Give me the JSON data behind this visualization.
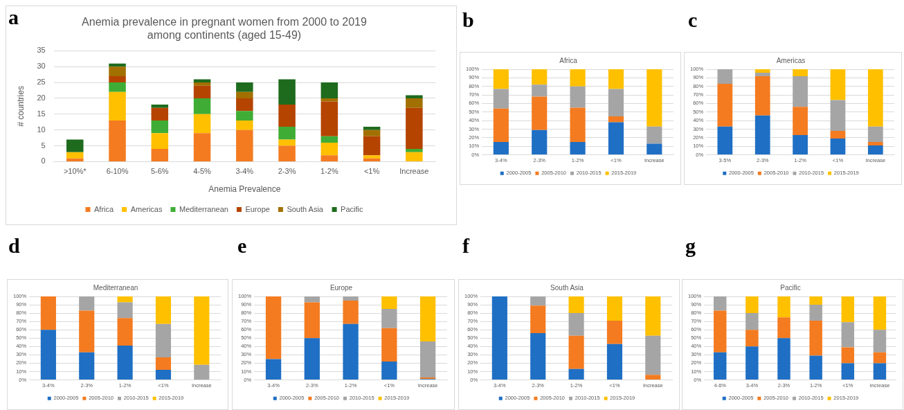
{
  "chart_data": [
    {
      "type": "bar",
      "stacked": true,
      "title": "Anemia prevalence in pregnant women from 2000 to 2019 among continents (aged 15-49)",
      "xlabel": "Anemia Prevalence",
      "ylabel": "# countries",
      "annotations": [
        "a"
      ],
      "categories": [
        ">10%*",
        "6-10%",
        "5-6%",
        "4-5%",
        "3-4%",
        "2-3%",
        "1-2%",
        "<1%",
        "Increase"
      ],
      "series": [
        {
          "name": "Africa",
          "color": "#f47b20",
          "values": [
            1,
            13,
            4,
            9,
            10,
            5,
            2,
            1,
            0
          ]
        },
        {
          "name": "Americas",
          "color": "#ffc000",
          "values": [
            2,
            9,
            5,
            6,
            3,
            2,
            4,
            1,
            3
          ]
        },
        {
          "name": "Mediterranean",
          "color": "#3fad35",
          "values": [
            0,
            3,
            4,
            5,
            3,
            4,
            2,
            0,
            1
          ]
        },
        {
          "name": "Europe",
          "color": "#b54400",
          "values": [
            0,
            2,
            4,
            4,
            4,
            7,
            11,
            6,
            13
          ]
        },
        {
          "name": "South Asia",
          "color": "#a27000",
          "values": [
            0,
            3,
            0,
            1,
            2,
            0,
            1,
            2,
            3
          ]
        },
        {
          "name": "Pacific",
          "color": "#1e6b1e",
          "values": [
            4,
            1,
            1,
            1,
            3,
            8,
            5,
            1,
            1
          ]
        }
      ],
      "ylim": [
        0,
        35
      ],
      "yticks": [
        0,
        5,
        10,
        15,
        20,
        25,
        30,
        35
      ],
      "grid": "y",
      "legend": "bottom"
    },
    {
      "type": "bar",
      "stacked": true,
      "title": "Africa",
      "annotations": [
        "b"
      ],
      "categories": [
        "3-4%",
        "2-3%",
        "1-2%",
        "<1%",
        "Increase"
      ],
      "series": [
        {
          "name": "2000-2005",
          "color": "#1f6fc4",
          "values": [
            15,
            29,
            15,
            38,
            13
          ]
        },
        {
          "name": "2005-2010",
          "color": "#f47b20",
          "values": [
            39,
            39,
            40,
            7,
            0
          ]
        },
        {
          "name": "2010-2015",
          "color": "#a5a5a5",
          "values": [
            23,
            14,
            25,
            32,
            20
          ]
        },
        {
          "name": "2015-2019",
          "color": "#ffc000",
          "values": [
            23,
            18,
            20,
            23,
            67
          ]
        }
      ],
      "ylim": [
        0,
        100
      ],
      "yticks": [
        {
          "value": 0,
          "label": "0%"
        },
        {
          "value": 10,
          "label": "10%"
        },
        {
          "value": 20,
          "label": "20%"
        },
        {
          "value": 30,
          "label": "30%"
        },
        {
          "value": 40,
          "label": "40%"
        },
        {
          "value": 50,
          "label": "50%"
        },
        {
          "value": 60,
          "label": "60%"
        },
        {
          "value": 70,
          "label": "70%"
        },
        {
          "value": 80,
          "label": "80%"
        },
        {
          "value": 90,
          "label": "90%"
        },
        {
          "value": 100,
          "label": "100%"
        }
      ],
      "grid": "y",
      "legend": "bottom"
    },
    {
      "type": "bar",
      "stacked": true,
      "title": "Americas",
      "annotations": [
        "c"
      ],
      "categories": [
        "3-5%",
        "2-3%",
        "1-2%",
        "<1%",
        "Increase"
      ],
      "series": [
        {
          "name": "2000-2005",
          "color": "#1f6fc4",
          "values": [
            33,
            46,
            23,
            19,
            11
          ]
        },
        {
          "name": "2005-2010",
          "color": "#f47b20",
          "values": [
            50,
            46,
            33,
            9,
            4
          ]
        },
        {
          "name": "2010-2015",
          "color": "#a5a5a5",
          "values": [
            17,
            4,
            36,
            36,
            18
          ]
        },
        {
          "name": "2015-2019",
          "color": "#ffc000",
          "values": [
            0,
            4,
            8,
            36,
            67
          ]
        }
      ],
      "ylim": [
        0,
        100
      ],
      "yticks": [
        {
          "value": 0,
          "label": "0%"
        },
        {
          "value": 10,
          "label": "10%"
        },
        {
          "value": 20,
          "label": "20%"
        },
        {
          "value": 30,
          "label": "30%"
        },
        {
          "value": 40,
          "label": "40%"
        },
        {
          "value": 50,
          "label": "50%"
        },
        {
          "value": 60,
          "label": "60%"
        },
        {
          "value": 70,
          "label": "70%"
        },
        {
          "value": 80,
          "label": "80%"
        },
        {
          "value": 90,
          "label": "90%"
        },
        {
          "value": 100,
          "label": "100%"
        }
      ],
      "grid": "y",
      "legend": "bottom"
    },
    {
      "type": "bar",
      "stacked": true,
      "title": "Mediterranean",
      "annotations": [
        "d"
      ],
      "categories": [
        "3-4%",
        "2-3%",
        "1-2%",
        "<1%",
        "Increase"
      ],
      "series": [
        {
          "name": "2000-2005",
          "color": "#1f6fc4",
          "values": [
            60,
            33,
            41,
            12,
            0
          ]
        },
        {
          "name": "2005-2010",
          "color": "#f47b20",
          "values": [
            40,
            50,
            33,
            15,
            0
          ]
        },
        {
          "name": "2010-2015",
          "color": "#a5a5a5",
          "values": [
            0,
            17,
            19,
            40,
            18
          ]
        },
        {
          "name": "2015-2019",
          "color": "#ffc000",
          "values": [
            0,
            0,
            7,
            33,
            82
          ]
        }
      ],
      "ylim": [
        0,
        100
      ],
      "yticks": [
        {
          "value": 0,
          "label": "0%"
        },
        {
          "value": 10,
          "label": "10%"
        },
        {
          "value": 20,
          "label": "20%"
        },
        {
          "value": 30,
          "label": "30%"
        },
        {
          "value": 40,
          "label": "40%"
        },
        {
          "value": 50,
          "label": "50%"
        },
        {
          "value": 60,
          "label": "60%"
        },
        {
          "value": 70,
          "label": "70%"
        },
        {
          "value": 80,
          "label": "80%"
        },
        {
          "value": 90,
          "label": "90%"
        },
        {
          "value": 100,
          "label": "100%"
        }
      ],
      "grid": "y",
      "legend": "bottom"
    },
    {
      "type": "bar",
      "stacked": true,
      "title": "Europe",
      "annotations": [
        "e"
      ],
      "categories": [
        "3-4%",
        "2-3%",
        "1-2%",
        "<1%",
        "Increase"
      ],
      "series": [
        {
          "name": "2000-2005",
          "color": "#1f6fc4",
          "values": [
            25,
            50,
            67,
            22,
            1
          ]
        },
        {
          "name": "2005-2010",
          "color": "#f47b20",
          "values": [
            75,
            43,
            28,
            40,
            2
          ]
        },
        {
          "name": "2010-2015",
          "color": "#a5a5a5",
          "values": [
            0,
            7,
            5,
            23,
            43
          ]
        },
        {
          "name": "2015-2019",
          "color": "#ffc000",
          "values": [
            0,
            0,
            0,
            15,
            54
          ]
        }
      ],
      "ylim": [
        0,
        100
      ],
      "yticks": [
        {
          "value": 0,
          "label": "0%"
        },
        {
          "value": 10,
          "label": "10%"
        },
        {
          "value": 20,
          "label": "20%"
        },
        {
          "value": 30,
          "label": "30%"
        },
        {
          "value": 40,
          "label": "40%"
        },
        {
          "value": 50,
          "label": "50%"
        },
        {
          "value": 60,
          "label": "60%"
        },
        {
          "value": 70,
          "label": "70%"
        },
        {
          "value": 80,
          "label": "80%"
        },
        {
          "value": 90,
          "label": "90%"
        },
        {
          "value": 100,
          "label": "100%"
        }
      ],
      "grid": "y",
      "legend": "bottom"
    },
    {
      "type": "bar",
      "stacked": true,
      "title": "South Asia",
      "annotations": [
        "f"
      ],
      "categories": [
        "3-4%",
        "2-3%",
        "1-2%",
        "<1%",
        "Increase"
      ],
      "series": [
        {
          "name": "2000-2005",
          "color": "#1f6fc4",
          "values": [
            100,
            56,
            13,
            43,
            0
          ]
        },
        {
          "name": "2005-2010",
          "color": "#f47b20",
          "values": [
            0,
            33,
            40,
            28,
            6
          ]
        },
        {
          "name": "2010-2015",
          "color": "#a5a5a5",
          "values": [
            0,
            11,
            27,
            0,
            47
          ]
        },
        {
          "name": "2015-2019",
          "color": "#ffc000",
          "values": [
            0,
            0,
            20,
            29,
            47
          ]
        }
      ],
      "ylim": [
        0,
        100
      ],
      "yticks": [
        {
          "value": 0,
          "label": "0%"
        },
        {
          "value": 10,
          "label": "10%"
        },
        {
          "value": 20,
          "label": "20%"
        },
        {
          "value": 30,
          "label": "30%"
        },
        {
          "value": 40,
          "label": "40%"
        },
        {
          "value": 50,
          "label": "50%"
        },
        {
          "value": 60,
          "label": "60%"
        },
        {
          "value": 70,
          "label": "70%"
        },
        {
          "value": 80,
          "label": "80%"
        },
        {
          "value": 90,
          "label": "90%"
        },
        {
          "value": 100,
          "label": "100%"
        }
      ],
      "grid": "y",
      "legend": "bottom"
    },
    {
      "type": "bar",
      "stacked": true,
      "title": "Pacific",
      "annotations": [
        "g"
      ],
      "categories": [
        "4-6%",
        "3-4%",
        "2-3%",
        "1-2%",
        "<1%",
        "Increase"
      ],
      "series": [
        {
          "name": "2000-2005",
          "color": "#1f6fc4",
          "values": [
            33,
            40,
            50,
            29,
            20,
            20
          ]
        },
        {
          "name": "2005-2010",
          "color": "#f47b20",
          "values": [
            50,
            20,
            25,
            42,
            19,
            13
          ]
        },
        {
          "name": "2010-2015",
          "color": "#a5a5a5",
          "values": [
            17,
            20,
            0,
            19,
            30,
            27
          ]
        },
        {
          "name": "2015-2019",
          "color": "#ffc000",
          "values": [
            0,
            20,
            25,
            10,
            31,
            40
          ]
        }
      ],
      "ylim": [
        0,
        100
      ],
      "yticks": [
        {
          "value": 0,
          "label": "0%"
        },
        {
          "value": 10,
          "label": "10%"
        },
        {
          "value": 20,
          "label": "20%"
        },
        {
          "value": 30,
          "label": "30%"
        },
        {
          "value": 40,
          "label": "40%"
        },
        {
          "value": 50,
          "label": "50%"
        },
        {
          "value": 60,
          "label": "60%"
        },
        {
          "value": 70,
          "label": "70%"
        },
        {
          "value": 80,
          "label": "80%"
        },
        {
          "value": 90,
          "label": "90%"
        },
        {
          "value": 100,
          "label": "100%"
        }
      ],
      "grid": "y",
      "legend": "bottom"
    }
  ]
}
